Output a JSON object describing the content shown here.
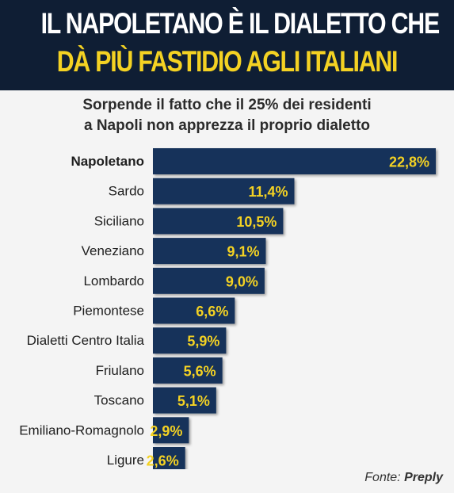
{
  "header": {
    "title_line1": "IL NAPOLETANO È IL DIALETTO CHE",
    "title_line2": "DÀ PIÙ FASTIDIO AGLI ITALIANI"
  },
  "subtitle": {
    "line1": "Sorpende il fatto che il 25% dei residenti",
    "line2": "a Napoli non apprezza il proprio dialetto"
  },
  "source": {
    "prefix": "Fonte: ",
    "name": "Preply"
  },
  "colors": {
    "header_bg": "#0f1e34",
    "title_accent": "#f4d223",
    "bar": "#16325a",
    "value_label": "#f4d223"
  },
  "chart_data": {
    "type": "bar",
    "orientation": "horizontal",
    "categories": [
      "Napoletano",
      "Sardo",
      "Siciliano",
      "Veneziano",
      "Lombardo",
      "Piemontese",
      "Dialetti Centro Italia",
      "Friulano",
      "Toscano",
      "Emiliano-Romagnolo",
      "Ligure"
    ],
    "values": [
      22.8,
      11.4,
      10.5,
      9.1,
      9.0,
      6.6,
      5.9,
      5.6,
      5.1,
      2.9,
      2.6
    ],
    "labels": [
      "22,8%",
      "11,4%",
      "10,5%",
      "9,1%",
      "9,0%",
      "6,6%",
      "5,9%",
      "5,6%",
      "5,1%",
      "2,9%",
      "2,6%"
    ],
    "highlight_category": "Napoletano",
    "grid": false,
    "legend": "none"
  }
}
